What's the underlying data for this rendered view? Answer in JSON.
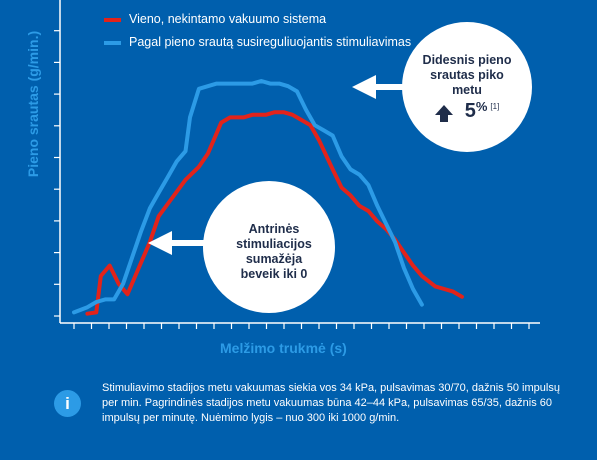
{
  "colors": {
    "background": "#005fad",
    "series_red": "#e2231a",
    "series_blue": "#2c9be6",
    "axis": "#ffffff",
    "circle": "#ffffff",
    "callout_text": "#1f2d4a"
  },
  "chart_data": {
    "type": "line",
    "xlabel": "Melžimo trukmė (s)",
    "ylabel": "Pieno srautas (g/min.)",
    "xlim": [
      0,
      100
    ],
    "ylim": [
      0,
      100
    ],
    "y_ticks": 10,
    "x_ticks": 27,
    "grid": false,
    "legend_position": "top",
    "series": [
      {
        "name": "Vieno, nekintamo vakuumo sistema",
        "color": "#e2231a",
        "points": [
          [
            3,
            0.5
          ],
          [
            5,
            1
          ],
          [
            6,
            15
          ],
          [
            8,
            19
          ],
          [
            10,
            12
          ],
          [
            12,
            8
          ],
          [
            14,
            16
          ],
          [
            17,
            28
          ],
          [
            19,
            38
          ],
          [
            22,
            45
          ],
          [
            25,
            52
          ],
          [
            28,
            57
          ],
          [
            30,
            62
          ],
          [
            33,
            74
          ],
          [
            35,
            76
          ],
          [
            38,
            76
          ],
          [
            40,
            77
          ],
          [
            43,
            77
          ],
          [
            45,
            78
          ],
          [
            47,
            78
          ],
          [
            49,
            77
          ],
          [
            51,
            75
          ],
          [
            53,
            73
          ],
          [
            55,
            67
          ],
          [
            58,
            56
          ],
          [
            60,
            49
          ],
          [
            62,
            46
          ],
          [
            64,
            42
          ],
          [
            66,
            40
          ],
          [
            68,
            36
          ],
          [
            70,
            33
          ],
          [
            72,
            29
          ],
          [
            74,
            24
          ],
          [
            76,
            19
          ],
          [
            78,
            15
          ],
          [
            81,
            11
          ],
          [
            83,
            10
          ],
          [
            85,
            9
          ],
          [
            87,
            7
          ]
        ]
      },
      {
        "name": "Pagal pieno srautą susireguliuojantis stimuliavimas",
        "color": "#2c9be6",
        "points": [
          [
            0,
            1
          ],
          [
            3,
            3
          ],
          [
            5,
            5
          ],
          [
            7,
            6
          ],
          [
            9,
            6
          ],
          [
            11,
            12
          ],
          [
            13,
            22
          ],
          [
            15,
            32
          ],
          [
            17,
            41
          ],
          [
            19,
            47
          ],
          [
            21,
            53
          ],
          [
            23,
            59
          ],
          [
            25,
            63
          ],
          [
            26,
            76
          ],
          [
            28,
            87
          ],
          [
            30,
            88
          ],
          [
            32,
            89
          ],
          [
            35,
            89
          ],
          [
            38,
            89
          ],
          [
            40,
            89
          ],
          [
            42,
            90
          ],
          [
            44,
            89
          ],
          [
            46,
            89
          ],
          [
            48,
            88
          ],
          [
            50,
            86
          ],
          [
            52,
            79
          ],
          [
            54,
            73
          ],
          [
            56,
            71
          ],
          [
            58,
            69
          ],
          [
            60,
            61
          ],
          [
            62,
            56
          ],
          [
            64,
            54
          ],
          [
            66,
            50
          ],
          [
            68,
            42
          ],
          [
            70,
            35
          ],
          [
            72,
            28
          ],
          [
            74,
            18
          ],
          [
            76,
            10
          ],
          [
            78,
            4
          ]
        ]
      }
    ]
  },
  "legend": {
    "item1": "Vieno, nekintamo vakuumo sistema",
    "item2": "Pagal pieno srautą susireguliuojantis stimuliavimas"
  },
  "callout_peak": {
    "line1": "Didesnis pieno",
    "line2": "srautas piko metu",
    "value": "5",
    "unit": "%",
    "ref": "[1]"
  },
  "callout_secondary": {
    "line1": "Antrinės",
    "line2": "stimuliacijos",
    "line3": "sumažėja",
    "line4": "beveik iki 0"
  },
  "info": {
    "icon": "i",
    "text": "Stimuliavimo stadijos metu vakuumas siekia vos 34 kPa, pulsavimas 30/70, dažnis 50 impulsų per min. Pagrindinės stadijos metu vakuumas būna 42–44 kPa, pulsavimas 65/35, dažnis 60 impulsų per minutę. Nuėmimo lygis – nuo 300 iki 1000 g/min."
  }
}
